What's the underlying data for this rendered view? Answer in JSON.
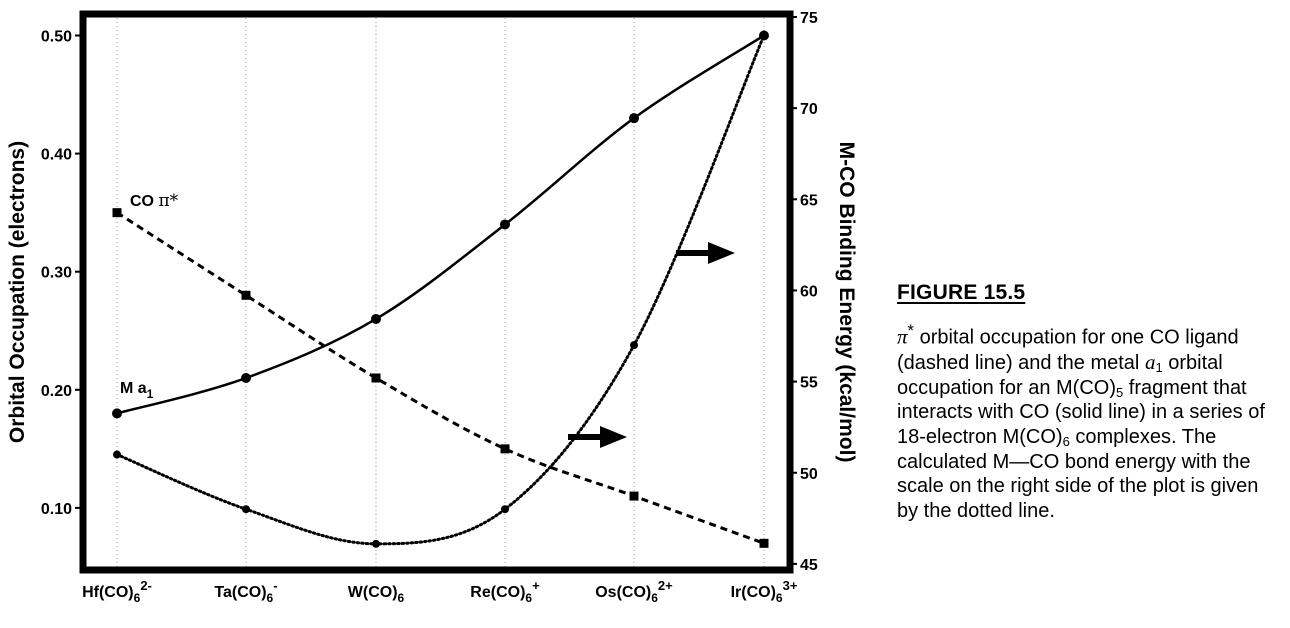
{
  "chart_data": {
    "type": "line",
    "categories": [
      "Hf(CO)6 2-",
      "Ta(CO)6 -",
      "W(CO)6",
      "Re(CO)6 +",
      "Os(CO)6 2+",
      "Ir(CO)6 3+"
    ],
    "x_tick_labels": [
      {
        "base": "Hf(CO)",
        "sub": "6",
        "sup": "2-"
      },
      {
        "base": "Ta(CO)",
        "sub": "6",
        "sup": "-"
      },
      {
        "base": "W(CO)",
        "sub": "6",
        "sup": ""
      },
      {
        "base": "Re(CO)",
        "sub": "6",
        "sup": "+"
      },
      {
        "base": "Os(CO)",
        "sub": "6",
        "sup": "2+"
      },
      {
        "base": "Ir(CO)",
        "sub": "6",
        "sup": "3+"
      }
    ],
    "ylabel_left": "Orbital Occupation (electrons)",
    "ylabel_right": "M-CO Binding Energy  (kcal/mol)",
    "ylim_left": [
      0.05,
      0.525
    ],
    "ylim_right": [
      45,
      75
    ],
    "yticks_left": [
      "0.10",
      "0.20",
      "0.30",
      "0.40",
      "0.50"
    ],
    "yticks_right": [
      "45",
      "50",
      "55",
      "60",
      "65",
      "70",
      "75"
    ],
    "grid": "vertical dotted lines at each category",
    "series": [
      {
        "name": "CO π*",
        "axis": "left",
        "style": "dashed",
        "marker": "square",
        "values": [
          0.35,
          0.28,
          0.21,
          0.15,
          0.11,
          0.07
        ]
      },
      {
        "name": "M a1",
        "axis": "left",
        "style": "solid",
        "marker": "circle",
        "values": [
          0.18,
          0.21,
          0.26,
          0.34,
          0.43,
          0.5
        ]
      },
      {
        "name": "",
        "axis": "right",
        "style": "dotted",
        "marker": "circle",
        "values": [
          51.0,
          48.0,
          46.1,
          48.0,
          57.0,
          74.0
        ]
      }
    ],
    "annotations": {
      "co_pi": {
        "prefix": "CO ",
        "symbol": "π*"
      },
      "m_a1": {
        "prefix": "M a",
        "sub": "1"
      }
    },
    "arrows": [
      {
        "direction": "right",
        "points_to": "right axis"
      },
      {
        "direction": "right",
        "points_to": "right axis"
      }
    ]
  },
  "caption": {
    "title": "FIGURE 15.5",
    "parts": {
      "p1_sym": "π",
      "p1_sup": "*",
      "p1": " orbital occupation for one CO ligand (dashed line) and the metal ",
      "p2_ital": "a",
      "p2_sub": "1",
      "p3": " orbital occupation for an M(CO)",
      "p3_sub": "5",
      "p4": " fragment that interacts with CO (solid line) in a series of 18-electron M(CO)",
      "p4_sub": "6",
      "p5": " complexes. The calculated M—CO bond energy with the scale on the right side of the plot is given by the dotted line."
    }
  }
}
